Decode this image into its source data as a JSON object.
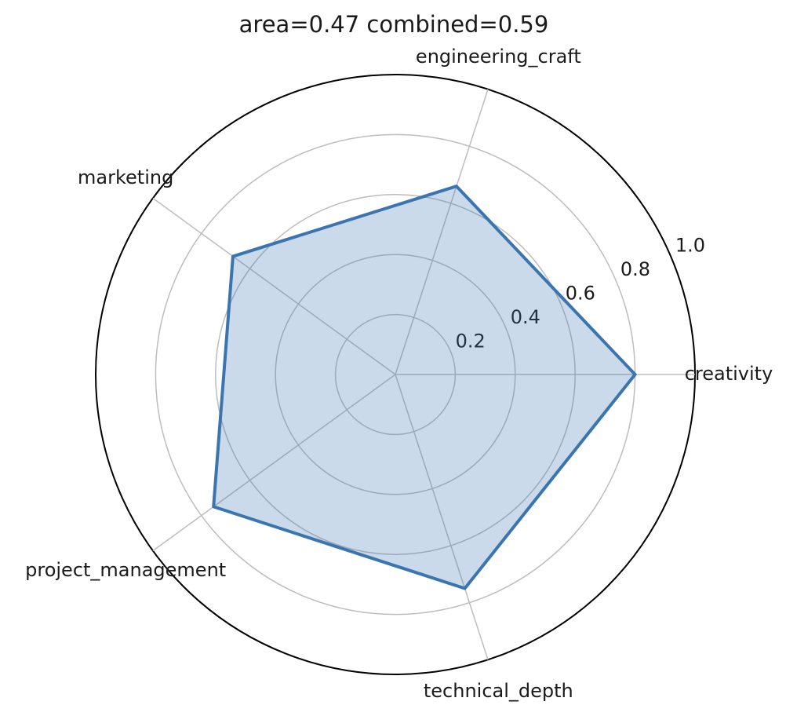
{
  "chart_data": {
    "type": "radar",
    "title": "area=0.47 combined=0.59",
    "categories": [
      "creativity",
      "engineering_craft",
      "marketing",
      "project_management",
      "technical_depth"
    ],
    "values": [
      0.8,
      0.66,
      0.67,
      0.75,
      0.75
    ],
    "color": "#3a75b0",
    "ylim": [
      0,
      1
    ],
    "yticks": [
      0.2,
      0.4,
      0.6,
      0.8,
      {
        "value": 1,
        "label": "1.0"
      }
    ],
    "grid": true
  }
}
